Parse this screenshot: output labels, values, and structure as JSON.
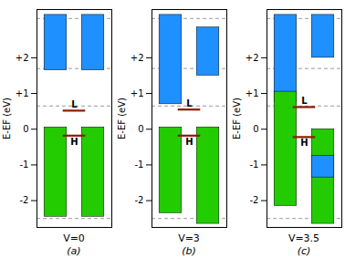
{
  "chart_data": [
    {
      "type": "bar",
      "title": "(a)",
      "xlabel": "V=0",
      "ylabel": "E-EF (eV)",
      "categories": [
        null,
        null
      ],
      "series": [
        {
          "color": "#1E90FF",
          "values": [
            [
              1.65,
              3.2
            ],
            [
              1.65,
              3.2
            ]
          ]
        },
        {
          "color": "#22CC00",
          "values": [
            [
              -2.45,
              0.05
            ],
            [
              -2.45,
              0.05
            ]
          ]
        }
      ],
      "annotations": [
        {
          "text": "H",
          "y": -0.18,
          "color": "#8B1A00"
        },
        {
          "text": "L",
          "y": 0.52,
          "color": "#8B1A00"
        }
      ],
      "hlines": [
        3.1,
        1.7,
        0.65,
        -2.5
      ],
      "ylim": [
        -2.75,
        3.35
      ],
      "yticks": [
        -2,
        -1,
        0,
        {
          "value": 1,
          "label": "+1"
        },
        {
          "value": 2,
          "label": "+2"
        }
      ],
      "tick_labels": "y"
    },
    {
      "type": "bar",
      "title": "(b)",
      "xlabel": "V=3",
      "ylabel": "E-EF (eV)",
      "categories": [
        null,
        null
      ],
      "series": [
        {
          "color": "#1E90FF",
          "values": [
            [
              0.7,
              3.2
            ],
            [
              1.5,
              2.85
            ]
          ]
        },
        {
          "color": "#22CC00",
          "values": [
            [
              -2.35,
              0.05
            ],
            [
              -2.65,
              0.05
            ]
          ]
        }
      ],
      "annotations": [
        {
          "text": "H",
          "y": -0.18,
          "color": "#8B1A00"
        },
        {
          "text": "L",
          "y": 0.55,
          "color": "#8B1A00"
        }
      ],
      "hlines": [
        3.1,
        1.7,
        0.65,
        -2.5
      ],
      "ylim": [
        -2.75,
        3.35
      ],
      "yticks": [
        -2,
        -1,
        0,
        {
          "value": 1,
          "label": "+1"
        },
        {
          "value": 2,
          "label": "+2"
        }
      ],
      "tick_labels": "y"
    },
    {
      "type": "bar",
      "title": "(c)",
      "xlabel": "V=3.5",
      "ylabel": "E-EF (eV)",
      "categories": [
        null,
        null
      ],
      "series": [
        {
          "color": "#1E90FF",
          "values": [
            [
              0.75,
              3.2
            ],
            [
              2.0,
              3.2
            ]
          ]
        },
        {
          "color": "#22CC00",
          "values": [
            [
              -2.15,
              1.05
            ],
            [
              -2.65,
              0.0
            ]
          ]
        },
        {
          "color": "#1E90FF",
          "values": [
            null,
            [
              -1.35,
              -0.75
            ]
          ]
        }
      ],
      "annotations": [
        {
          "text": "H",
          "y": -0.22,
          "color": "#8B1A00"
        },
        {
          "text": "L",
          "y": 0.62,
          "color": "#8B1A00"
        }
      ],
      "hlines": [
        3.1,
        1.7,
        0.65,
        -2.5
      ],
      "ylim": [
        -2.75,
        3.35
      ],
      "yticks": [
        -2,
        -1,
        0,
        {
          "value": 1,
          "label": "+1"
        },
        {
          "value": 2,
          "label": "+2"
        }
      ],
      "tick_labels": "y"
    }
  ]
}
